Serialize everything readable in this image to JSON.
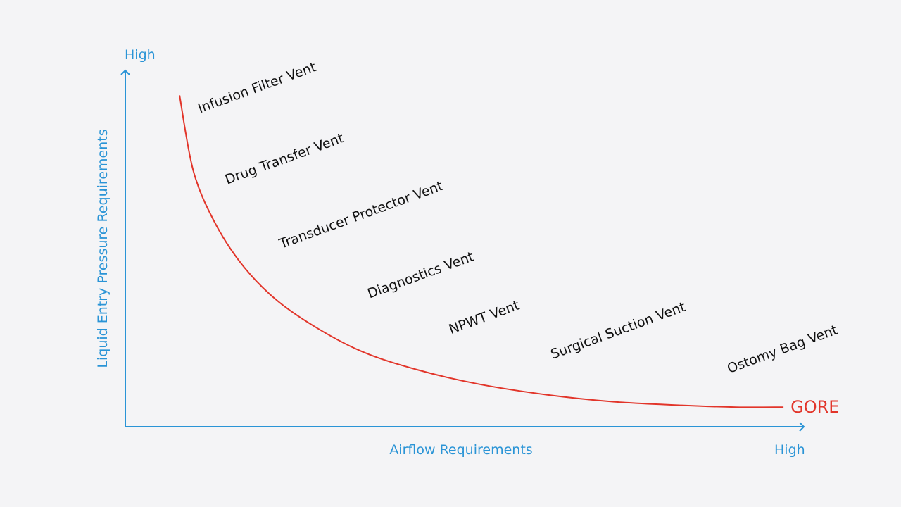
{
  "chart_data": {
    "type": "line",
    "title": "",
    "xlabel": "Airflow Requirements",
    "ylabel": "Liquid Entry Pressure Requirements",
    "x_high_label": "High",
    "y_high_label": "High",
    "xlim": [
      0,
      1
    ],
    "ylim": [
      0,
      1
    ],
    "grid": false,
    "series": [
      {
        "name": "GORE",
        "color": "#e2352a",
        "x": [
          0.08,
          0.1,
          0.13,
          0.17,
          0.22,
          0.28,
          0.35,
          0.43,
          0.52,
          0.62,
          0.72,
          0.82,
          0.9,
          0.97
        ],
        "y": [
          0.93,
          0.72,
          0.58,
          0.46,
          0.36,
          0.28,
          0.21,
          0.16,
          0.12,
          0.09,
          0.07,
          0.06,
          0.055,
          0.055
        ]
      }
    ],
    "annotations": [
      {
        "text": "Infusion Filter Vent",
        "x": 0.11,
        "y": 0.88
      },
      {
        "text": "Drug Transfer Vent",
        "x": 0.15,
        "y": 0.68
      },
      {
        "text": "Transducer Protector Vent",
        "x": 0.23,
        "y": 0.5
      },
      {
        "text": "Diagnostics Vent",
        "x": 0.36,
        "y": 0.36
      },
      {
        "text": "NPWT Vent",
        "x": 0.48,
        "y": 0.26
      },
      {
        "text": "Surgical Suction Vent",
        "x": 0.63,
        "y": 0.19
      },
      {
        "text": "Ostomy Bag Vent",
        "x": 0.89,
        "y": 0.15
      }
    ],
    "colors": {
      "axis": "#2a94d6",
      "curve": "#e2352a",
      "label": "#111111",
      "background": "#f4f4f6"
    }
  }
}
